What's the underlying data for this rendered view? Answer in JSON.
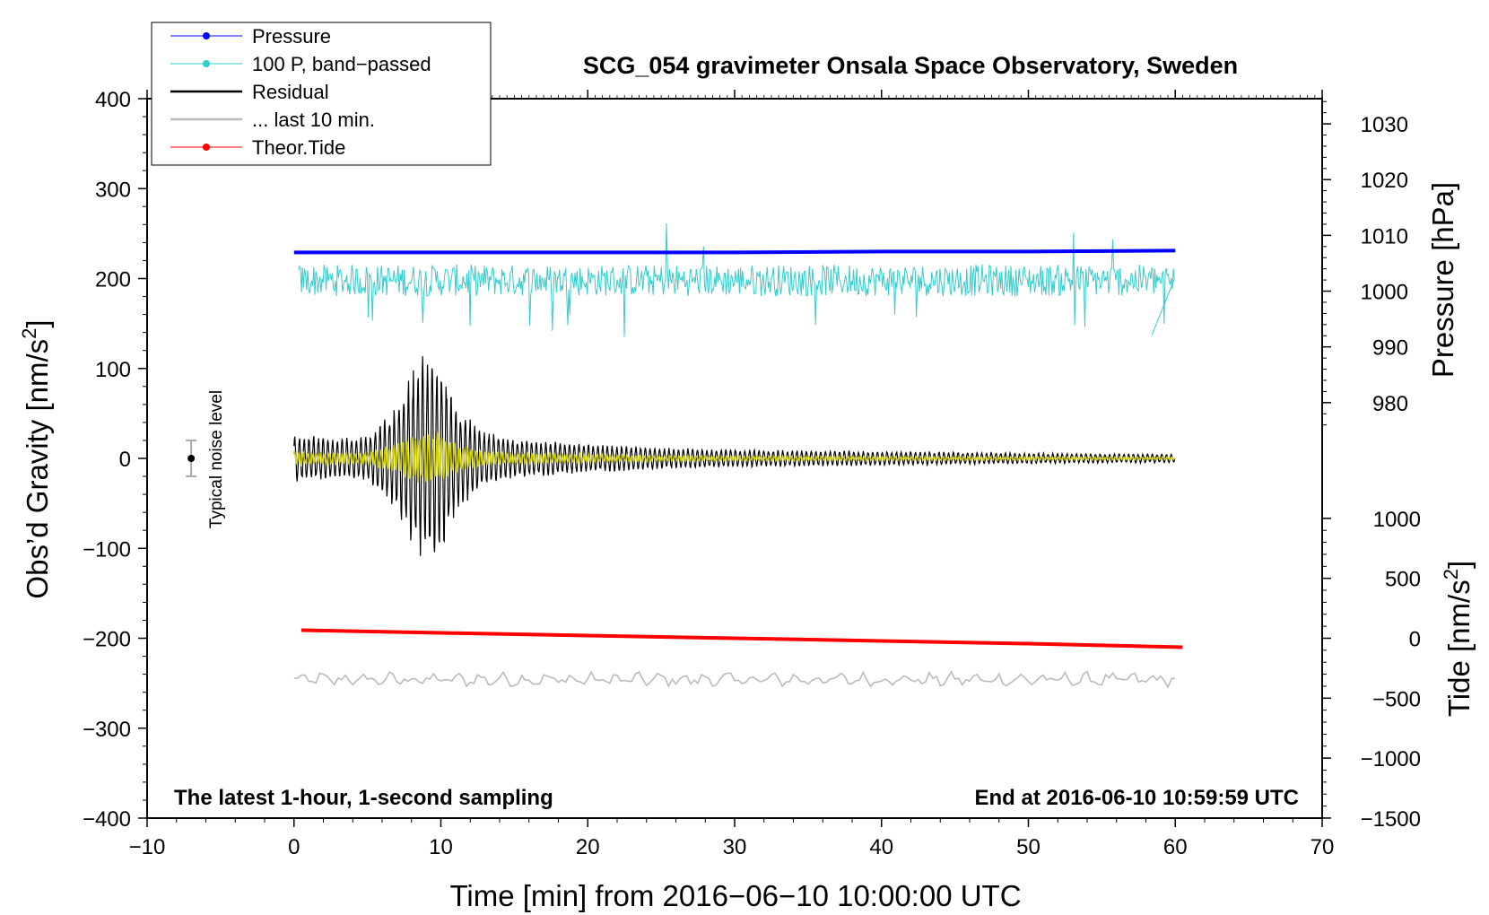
{
  "chart_data": {
    "type": "line",
    "title": "SCG_054 gravimeter Onsala Space Observatory, Sweden",
    "annotations": {
      "left": "The latest 1-hour, 1-second sampling",
      "right": "End at 2016-06-10 10:59:59 UTC",
      "noise_label": "Typical noise level"
    },
    "xlabel": "Time [min] from 2016−06−10 10:00:00 UTC",
    "ylabel_prefix": "Obs’d Gravity [nm/s",
    "ylabel_suffix": "]",
    "ylabel_sup": "2",
    "y2_pressure_label": "Pressure [hPa]",
    "y2_tide_label_prefix": "Tide [nm/s",
    "y2_tide_label_suffix": "]",
    "y2_tide_label_sup": "2",
    "xlim": [
      -10,
      70
    ],
    "ylim": [
      -400,
      400
    ],
    "x_ticks": [
      -10,
      0,
      10,
      20,
      30,
      40,
      50,
      60,
      70
    ],
    "x_tick_labels": [
      "−10",
      "0",
      "10",
      "20",
      "30",
      "40",
      "50",
      "60",
      "70"
    ],
    "y_ticks": [
      -400,
      -300,
      -200,
      -100,
      0,
      100,
      200,
      300,
      400
    ],
    "y_tick_labels": [
      "−400",
      "−300",
      "−200",
      "−100",
      "0",
      "100",
      "200",
      "300",
      "400"
    ],
    "pressure_axis": {
      "ticks": [
        980,
        990,
        1000,
        1010,
        1020,
        1030
      ],
      "tick_labels": [
        "980",
        "990",
        "1000",
        "1010",
        "1020",
        "1030"
      ],
      "gravity_at_1000": 186,
      "gravity_per_hpa": 6.2
    },
    "tide_axis": {
      "ticks": [
        -1500,
        -1000,
        -500,
        0,
        500,
        1000
      ],
      "tick_labels": [
        "−1500",
        "−1000",
        "−500",
        "0",
        "500",
        "1000"
      ],
      "gravity_at_0": -200,
      "gravity_per_unit": 0.1333
    },
    "legend": {
      "position": "top-left",
      "entries": [
        {
          "label": "Pressure",
          "color": "#0000ff",
          "marker": true
        },
        {
          "label": "100 P, band−passed",
          "color": "#33cccc",
          "marker": true
        },
        {
          "label": "Residual",
          "color": "#000000",
          "marker": false
        },
        {
          "label": "... last 10 min.",
          "color": "#bbbbbb",
          "marker": false
        },
        {
          "label": "Theor.Tide",
          "color": "#ff0000",
          "marker": true
        }
      ]
    },
    "series": [
      {
        "name": "Pressure",
        "color": "#0000ff",
        "x": [
          0,
          10,
          20,
          30,
          40,
          50,
          60
        ],
        "y": [
          229,
          229,
          229,
          229,
          230,
          230,
          231
        ]
      },
      {
        "name": "Theor.Tide",
        "color": "#ff0000",
        "x": [
          0.5,
          10,
          20,
          30,
          40,
          50,
          60.5
        ],
        "y": [
          -191,
          -194,
          -197,
          -200,
          -203,
          -206,
          -210
        ]
      }
    ],
    "bandpassed_pressure": {
      "color": "#33cccc",
      "center": 198,
      "amplitude": 22,
      "spike_min": 137,
      "spike_max": 256
    },
    "residual_envelope": {
      "color": "#000000",
      "x": [
        0,
        3,
        5,
        7,
        8,
        9,
        10,
        11,
        13,
        15,
        20,
        25,
        30,
        40,
        50,
        60
      ],
      "amp": [
        28,
        22,
        25,
        60,
        100,
        120,
        110,
        60,
        30,
        22,
        16,
        12,
        10,
        8,
        6,
        5
      ]
    },
    "filtered_residual": {
      "color": "#cccc00"
    },
    "last_10_min": {
      "color": "#bbbbbb",
      "center": -246,
      "amplitude": 7
    },
    "noise_bar": {
      "x": -7,
      "y": 0,
      "half_range": 20
    }
  }
}
